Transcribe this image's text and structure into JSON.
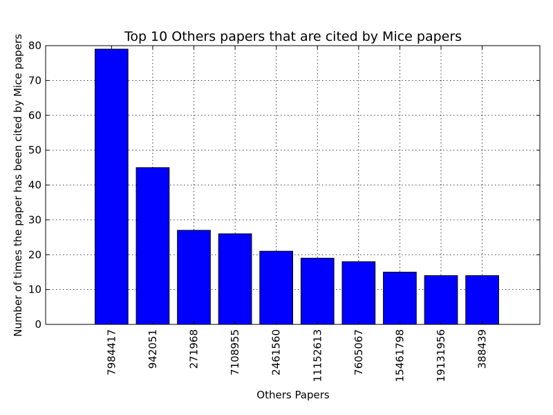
{
  "chart_data": {
    "type": "bar",
    "title": "Top 10 Others papers that are cited by Mice papers",
    "xlabel": "Others Papers",
    "ylabel": "Number of times the paper has been cited by Mice papers",
    "categories": [
      "7984417",
      "942051",
      "271968",
      "7108955",
      "2461560",
      "11152613",
      "7605067",
      "15461798",
      "19131956",
      "388439"
    ],
    "values": [
      79,
      45,
      27,
      26,
      21,
      19,
      18,
      15,
      14,
      14
    ],
    "ylim": [
      0,
      80
    ],
    "yticks": [
      0,
      10,
      20,
      30,
      40,
      50,
      60,
      70,
      80
    ],
    "xlim": [
      -1.6,
      10.4
    ],
    "grid": true,
    "bar_color": "#0000ff"
  }
}
